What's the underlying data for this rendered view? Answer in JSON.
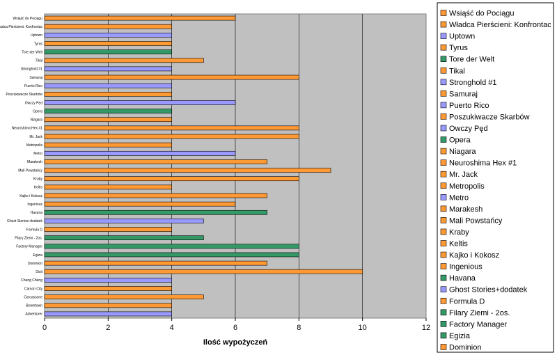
{
  "chart_data": {
    "type": "bar",
    "orientation": "horizontal",
    "categories": [
      "Wsiąść do Pociągu",
      "Władca Pierścieni: Konfrontac",
      "Uptown",
      "Tyrus",
      "Tore der Welt",
      "Tikal",
      "Stronghold #1",
      "Samuraj",
      "Puerto Rico",
      "Poszukiwacze Skarbów",
      "Owczy Pęd",
      "Opera",
      "Niagara",
      "Neuroshima Hex #1",
      "Mr. Jack",
      "Metropolis",
      "Metro",
      "Marakesh",
      "Mali Powstańcy",
      "Kraby",
      "Keltis",
      "Kajko i Kokosz",
      "Ingenious",
      "Havana",
      "Ghost Stories+dodatek",
      "Formula D",
      "Filary Ziemi - 2os.",
      "Factory Manager",
      "Egizia",
      "Dominion",
      "Dixit",
      "Chang Cheng",
      "Carson City",
      "Carcassone",
      "Boomtown",
      "Adventurer"
    ],
    "values": [
      6,
      4,
      4,
      4,
      4,
      5,
      4,
      8,
      4,
      4,
      6,
      4,
      4,
      8,
      8,
      4,
      6,
      7,
      9,
      8,
      4,
      7,
      6,
      7,
      5,
      4,
      5,
      8,
      8,
      7,
      10,
      4,
      4,
      5,
      4,
      4
    ],
    "bar_colors": [
      "#FF9933",
      "#FF9933",
      "#9999FF",
      "#FF9933",
      "#339966",
      "#FF9933",
      "#9999FF",
      "#FF9933",
      "#9999FF",
      "#FF9933",
      "#9999FF",
      "#339966",
      "#FF9933",
      "#FF9933",
      "#FF9933",
      "#FF9933",
      "#9999FF",
      "#FF9933",
      "#FF9933",
      "#FF9933",
      "#FF9933",
      "#FF9933",
      "#FF9933",
      "#339966",
      "#9999FF",
      "#FF9933",
      "#339966",
      "#339966",
      "#339966",
      "#FF9933",
      "#FF9933",
      "#9999FF",
      "#FF9933",
      "#FF9933",
      "#FF9933",
      "#9999FF"
    ],
    "xlabel": "Ilość wypożyczeń",
    "ylabel": "",
    "xlim": [
      0,
      12
    ],
    "xticks": [
      "0",
      "2",
      "4",
      "6",
      "8",
      "10",
      "12"
    ],
    "grid": "vertical",
    "plot_background": "#C0C0C0",
    "legend_position": "right",
    "legend": [
      {
        "label": "Wsiąść do Pociągu",
        "color": "#FF9933"
      },
      {
        "label": "Władca Pierścieni: Konfrontac",
        "color": "#FF9933"
      },
      {
        "label": "Uptown",
        "color": "#9999FF"
      },
      {
        "label": "Tyrus",
        "color": "#FF9933"
      },
      {
        "label": "Tore der Welt",
        "color": "#339966"
      },
      {
        "label": "Tikal",
        "color": "#FF9933"
      },
      {
        "label": "Stronghold #1",
        "color": "#9999FF"
      },
      {
        "label": "Samuraj",
        "color": "#FF9933"
      },
      {
        "label": "Puerto Rico",
        "color": "#9999FF"
      },
      {
        "label": "Poszukiwacze Skarbów",
        "color": "#FF9933"
      },
      {
        "label": "Owczy Pęd",
        "color": "#9999FF"
      },
      {
        "label": "Opera",
        "color": "#339966"
      },
      {
        "label": "Niagara",
        "color": "#FF9933"
      },
      {
        "label": "Neuroshima Hex #1",
        "color": "#FF9933"
      },
      {
        "label": "Mr. Jack",
        "color": "#FF9933"
      },
      {
        "label": "Metropolis",
        "color": "#FF9933"
      },
      {
        "label": "Metro",
        "color": "#9999FF"
      },
      {
        "label": "Marakesh",
        "color": "#FF9933"
      },
      {
        "label": "Mali Powstańcy",
        "color": "#FF9933"
      },
      {
        "label": "Kraby",
        "color": "#FF9933"
      },
      {
        "label": "Keltis",
        "color": "#FF9933"
      },
      {
        "label": "Kajko i Kokosz",
        "color": "#FF9933"
      },
      {
        "label": "Ingenious",
        "color": "#FF9933"
      },
      {
        "label": "Havana",
        "color": "#339966"
      },
      {
        "label": "Ghost Stories+dodatek",
        "color": "#9999FF"
      },
      {
        "label": "Formula D",
        "color": "#FF9933"
      },
      {
        "label": "Filary Ziemi - 2os.",
        "color": "#339966"
      },
      {
        "label": "Factory Manager",
        "color": "#339966"
      },
      {
        "label": "Egizia",
        "color": "#339966"
      },
      {
        "label": "Dominion",
        "color": "#FF9933"
      }
    ]
  }
}
